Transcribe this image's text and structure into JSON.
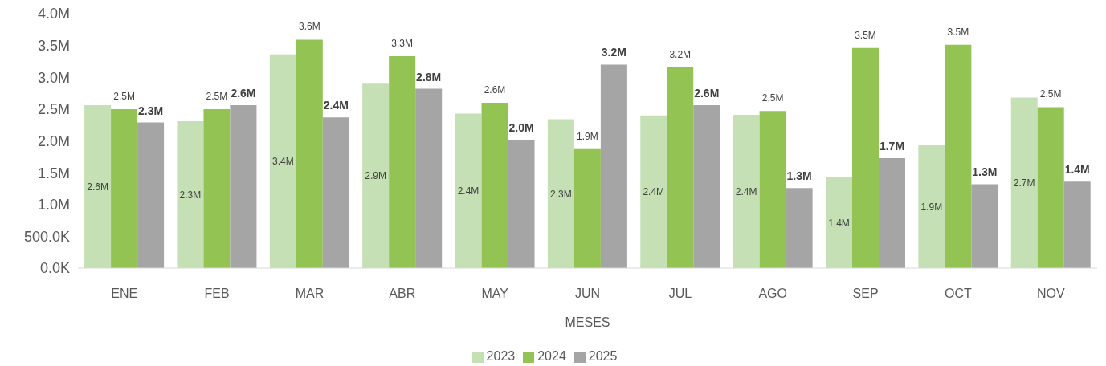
{
  "chart_data": {
    "type": "bar",
    "xlabel": "MESES",
    "categories": [
      "ENE",
      "FEB",
      "MAR",
      "ABR",
      "MAY",
      "JUN",
      "JUL",
      "AGO",
      "SEP",
      "OCT",
      "NOV"
    ],
    "series": [
      {
        "name": "2023",
        "color": "#c5e0b4",
        "values": [
          2560000,
          2310000,
          3360000,
          2900000,
          2430000,
          2340000,
          2400000,
          2410000,
          1430000,
          1930000,
          2680000
        ],
        "value_labels": [
          "2.6M",
          "2.3M",
          "3.4M",
          "2.9M",
          "2.4M",
          "2.3M",
          "2.4M",
          "2.4M",
          "1.4M",
          "1.9M",
          "2.7M"
        ]
      },
      {
        "name": "2024",
        "color": "#92c353",
        "values": [
          2500000,
          2500000,
          3590000,
          3330000,
          2600000,
          1870000,
          3160000,
          2470000,
          3460000,
          3510000,
          2530000
        ],
        "value_labels": [
          "2.5M",
          "2.5M",
          "3.6M",
          "3.3M",
          "2.6M",
          "1.9M",
          "3.2M",
          "2.5M",
          "3.5M",
          "3.5M",
          "2.5M"
        ]
      },
      {
        "name": "2025",
        "color": "#a5a5a5",
        "values": [
          2290000,
          2560000,
          2370000,
          2820000,
          2020000,
          3200000,
          2560000,
          1260000,
          1730000,
          1320000,
          1360000
        ],
        "value_labels": [
          "2.3M",
          "2.6M",
          "2.4M",
          "2.8M",
          "2.0M",
          "3.2M",
          "2.6M",
          "1.3M",
          "1.7M",
          "1.3M",
          "1.4M"
        ]
      }
    ],
    "ylim": [
      0,
      4000000
    ],
    "yticks": [
      {
        "value": 0,
        "label": "0.0K"
      },
      {
        "value": 500000,
        "label": "500.0K"
      },
      {
        "value": 1000000,
        "label": "1.0M"
      },
      {
        "value": 1500000,
        "label": "1.5M"
      },
      {
        "value": 2000000,
        "label": "2.0M"
      },
      {
        "value": 2500000,
        "label": "2.5M"
      },
      {
        "value": 3000000,
        "label": "3.0M"
      },
      {
        "value": 3500000,
        "label": "3.5M"
      },
      {
        "value": 4000000,
        "label": "4.0M"
      }
    ],
    "legend": "bottom"
  }
}
